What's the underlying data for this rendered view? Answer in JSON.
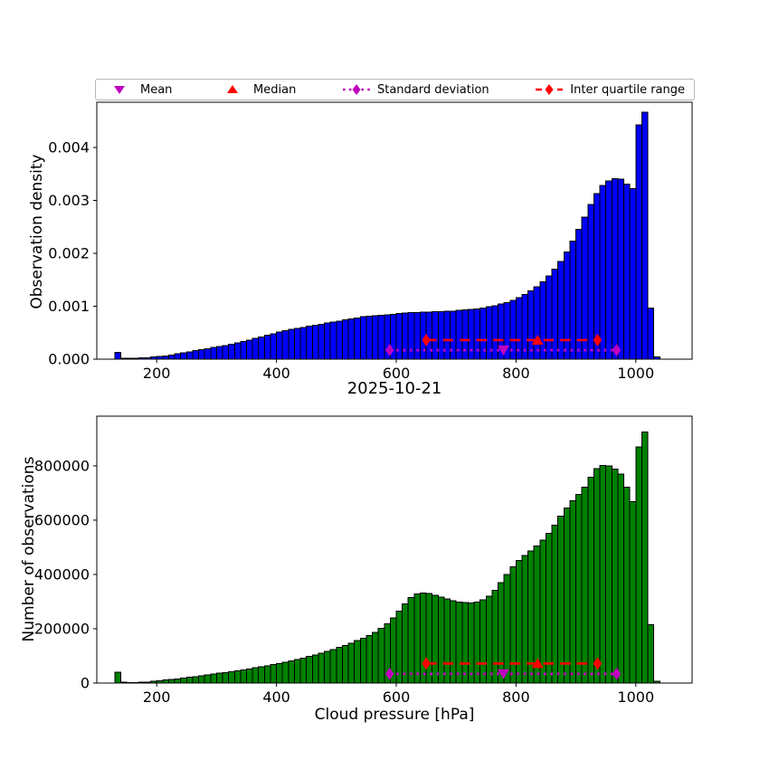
{
  "title": "2025-10-21",
  "legend": {
    "items": [
      {
        "label": "Mean",
        "marker": "triangle-down",
        "color": "#BF00BF",
        "linestyle": "none"
      },
      {
        "label": "Median",
        "marker": "triangle-up",
        "color": "#FF0000",
        "linestyle": "none"
      },
      {
        "label": "Standard deviation",
        "marker": "diamond",
        "color": "#BF00BF",
        "linestyle": "dotted"
      },
      {
        "label": "Inter quartile range",
        "marker": "diamond",
        "color": "#FF0000",
        "linestyle": "dashed"
      }
    ]
  },
  "chart_data": [
    {
      "id": "top",
      "type": "bar",
      "title": "",
      "xlabel": "",
      "ylabel": "Observation density",
      "bar_color": "#0000FF",
      "edge_color": "#000000",
      "bin_start": 130,
      "bin_width": 10,
      "values": [
        0.00013,
        2e-05,
        2e-05,
        2e-05,
        3e-05,
        3e-05,
        4e-05,
        5e-05,
        6e-05,
        8e-05,
        0.0001,
        0.00012,
        0.00014,
        0.00016,
        0.00018,
        0.0002,
        0.00022,
        0.00024,
        0.00026,
        0.00028,
        0.00031,
        0.00033,
        0.00036,
        0.00039,
        0.00042,
        0.00045,
        0.00048,
        0.00051,
        0.00054,
        0.00056,
        0.00058,
        0.0006,
        0.00062,
        0.00064,
        0.00066,
        0.00068,
        0.0007,
        0.00072,
        0.00074,
        0.00076,
        0.00078,
        0.0008,
        0.00081,
        0.00082,
        0.00083,
        0.00084,
        0.00085,
        0.00086,
        0.00087,
        0.00088,
        0.00088,
        0.00089,
        0.00089,
        0.0009,
        0.0009,
        0.00091,
        0.00091,
        0.00092,
        0.00093,
        0.00094,
        0.00095,
        0.00097,
        0.00099,
        0.00101,
        0.00104,
        0.00107,
        0.00111,
        0.00116,
        0.00122,
        0.00129,
        0.00137,
        0.00146,
        0.00157,
        0.0017,
        0.00185,
        0.00203,
        0.00223,
        0.00245,
        0.00268,
        0.00292,
        0.00313,
        0.00328,
        0.00337,
        0.00341,
        0.0034,
        0.00331,
        0.00322,
        0.00443,
        0.00467,
        0.00097,
        4e-05
      ],
      "xlim": [
        100,
        1094
      ],
      "ylim": [
        0,
        0.004855
      ],
      "xticks": [
        200,
        400,
        600,
        800,
        1000
      ],
      "xtick_labels": [
        "200",
        "400",
        "600",
        "800",
        "1000"
      ],
      "yticks": [
        0,
        0.001,
        0.002,
        0.003,
        0.004
      ],
      "ytick_labels": [
        "0.000",
        "0.001",
        "0.002",
        "0.003",
        "0.004"
      ],
      "markers": {
        "mean": 779,
        "std_low": 589,
        "std_high": 968,
        "median": 836,
        "q1": 650,
        "q3": 936,
        "std_line_value": 0.00017,
        "iqr_line_value": 0.00036,
        "mean_color": "#BF00BF",
        "median_color": "#FF0000"
      }
    },
    {
      "id": "bottom",
      "type": "bar",
      "title": "",
      "xlabel": "Cloud pressure [hPa]",
      "ylabel": "Number of observations",
      "bar_color": "#008000",
      "edge_color": "#000000",
      "bin_start": 130,
      "bin_width": 10,
      "values": [
        40000,
        3000,
        2000,
        2000,
        3000,
        4000,
        6000,
        9000,
        11000,
        13000,
        15000,
        18000,
        21000,
        24000,
        27000,
        30000,
        33000,
        36000,
        39000,
        42000,
        45000,
        48000,
        52000,
        56000,
        60000,
        64000,
        68000,
        72000,
        77000,
        82000,
        87000,
        92000,
        98000,
        104000,
        110000,
        117000,
        124000,
        131000,
        139000,
        147000,
        156000,
        165000,
        175000,
        187000,
        201000,
        218000,
        240000,
        265000,
        292000,
        315000,
        328000,
        332000,
        330000,
        324000,
        317000,
        310000,
        304000,
        299000,
        296000,
        295000,
        298000,
        306000,
        320000,
        342000,
        370000,
        400000,
        428000,
        452000,
        470000,
        487000,
        505000,
        527000,
        552000,
        582000,
        614000,
        645000,
        672000,
        695000,
        722000,
        758000,
        790000,
        802000,
        800000,
        788000,
        770000,
        722000,
        668000,
        870000,
        925000,
        215000,
        7000
      ],
      "xlim": [
        100,
        1094
      ],
      "ylim": [
        0,
        983000
      ],
      "xticks": [
        200,
        400,
        600,
        800,
        1000
      ],
      "xtick_labels": [
        "200",
        "400",
        "600",
        "800",
        "1000"
      ],
      "yticks": [
        0,
        200000,
        400000,
        600000,
        800000
      ],
      "ytick_labels": [
        "0",
        "200000",
        "400000",
        "600000",
        "800000"
      ],
      "markers": {
        "mean": 779,
        "std_low": 589,
        "std_high": 968,
        "median": 836,
        "q1": 650,
        "q3": 936,
        "std_line_value": 34000,
        "iqr_line_value": 72000,
        "mean_color": "#BF00BF",
        "median_color": "#FF0000"
      }
    }
  ]
}
